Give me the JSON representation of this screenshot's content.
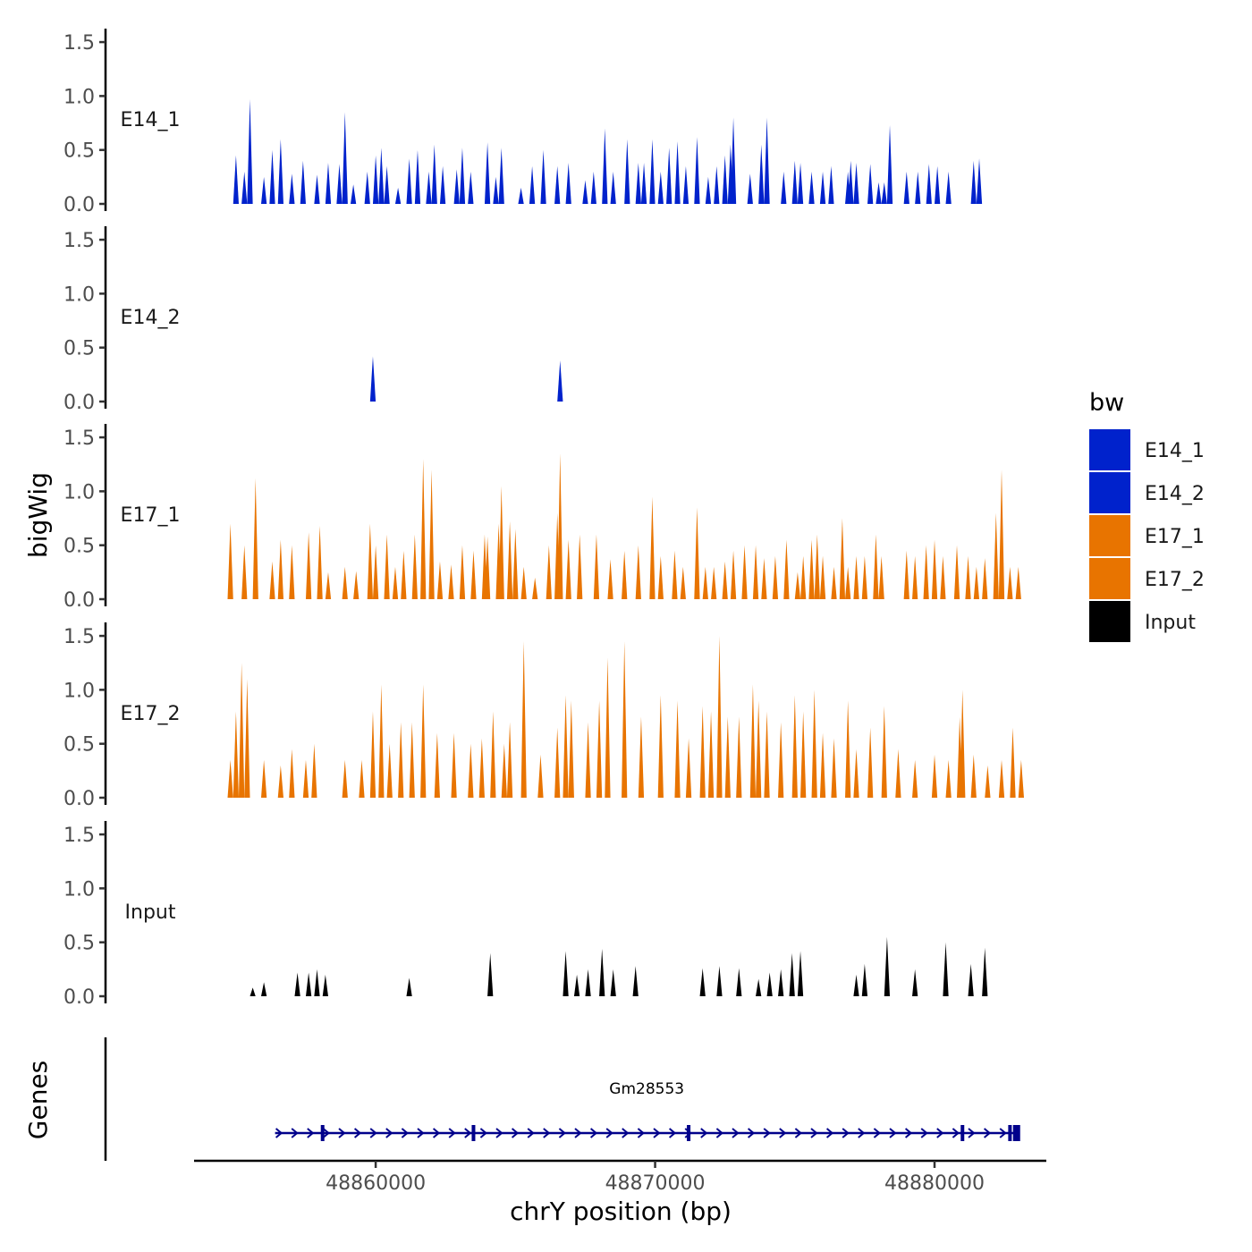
{
  "chart_data": {
    "type": "area",
    "title": "",
    "xlabel": "chrY position (bp)",
    "ylabel": "bigWig",
    "xlim": [
      48853500,
      48884000
    ],
    "ylim": [
      0,
      1.6
    ],
    "x_ticks": [
      48860000,
      48870000,
      48880000
    ],
    "x_tick_labels": [
      "48860000",
      "48870000",
      "48880000"
    ],
    "y_ticks": [
      0.0,
      0.5,
      1.0,
      1.5
    ],
    "y_tick_labels": [
      "0.0",
      "0.5",
      "1.0",
      "1.5"
    ],
    "legend": {
      "title": "bw",
      "position": "right",
      "entries": [
        {
          "label": "E14_1",
          "color": "#0022cc"
        },
        {
          "label": "E14_2",
          "color": "#0022cc"
        },
        {
          "label": "E17_1",
          "color": "#e87400"
        },
        {
          "label": "E17_2",
          "color": "#e87400"
        },
        {
          "label": "Input",
          "color": "#000000"
        }
      ]
    },
    "series": [
      {
        "name": "E14_1",
        "color": "#0022cc",
        "peaks": [
          [
            48855000,
            0.45
          ],
          [
            48855300,
            0.3
          ],
          [
            48855500,
            0.97
          ],
          [
            48856000,
            0.25
          ],
          [
            48856300,
            0.5
          ],
          [
            48856600,
            0.6
          ],
          [
            48857000,
            0.28
          ],
          [
            48857400,
            0.4
          ],
          [
            48857900,
            0.27
          ],
          [
            48858300,
            0.38
          ],
          [
            48858700,
            0.37
          ],
          [
            48858900,
            0.85
          ],
          [
            48859200,
            0.18
          ],
          [
            48859700,
            0.3
          ],
          [
            48860000,
            0.45
          ],
          [
            48860200,
            0.52
          ],
          [
            48860400,
            0.35
          ],
          [
            48860800,
            0.15
          ],
          [
            48861200,
            0.42
          ],
          [
            48861500,
            0.5
          ],
          [
            48861900,
            0.3
          ],
          [
            48862100,
            0.55
          ],
          [
            48862400,
            0.35
          ],
          [
            48862900,
            0.32
          ],
          [
            48863100,
            0.52
          ],
          [
            48863400,
            0.3
          ],
          [
            48864000,
            0.57
          ],
          [
            48864300,
            0.25
          ],
          [
            48864500,
            0.52
          ],
          [
            48865200,
            0.15
          ],
          [
            48865600,
            0.35
          ],
          [
            48866000,
            0.5
          ],
          [
            48866500,
            0.35
          ],
          [
            48866900,
            0.38
          ],
          [
            48867500,
            0.22
          ],
          [
            48867800,
            0.3
          ],
          [
            48868200,
            0.7
          ],
          [
            48868500,
            0.3
          ],
          [
            48869000,
            0.6
          ],
          [
            48869400,
            0.38
          ],
          [
            48869600,
            0.38
          ],
          [
            48869900,
            0.6
          ],
          [
            48870200,
            0.3
          ],
          [
            48870500,
            0.52
          ],
          [
            48870800,
            0.58
          ],
          [
            48871100,
            0.35
          ],
          [
            48871500,
            0.62
          ],
          [
            48871900,
            0.25
          ],
          [
            48872200,
            0.35
          ],
          [
            48872500,
            0.45
          ],
          [
            48872700,
            0.55
          ],
          [
            48872800,
            0.8
          ],
          [
            48873400,
            0.28
          ],
          [
            48873800,
            0.55
          ],
          [
            48874000,
            0.8
          ],
          [
            48874600,
            0.3
          ],
          [
            48875000,
            0.4
          ],
          [
            48875200,
            0.38
          ],
          [
            48875600,
            0.3
          ],
          [
            48876000,
            0.3
          ],
          [
            48876300,
            0.35
          ],
          [
            48876900,
            0.3
          ],
          [
            48877000,
            0.4
          ],
          [
            48877200,
            0.38
          ],
          [
            48877700,
            0.37
          ],
          [
            48878000,
            0.2
          ],
          [
            48878200,
            0.2
          ],
          [
            48878400,
            0.73
          ],
          [
            48879000,
            0.3
          ],
          [
            48879400,
            0.3
          ],
          [
            48879800,
            0.37
          ],
          [
            48880100,
            0.35
          ],
          [
            48880500,
            0.3
          ],
          [
            48881400,
            0.4
          ],
          [
            48881600,
            0.42
          ]
        ]
      },
      {
        "name": "E14_2",
        "color": "#0022cc",
        "peaks": [
          [
            48859900,
            0.42
          ],
          [
            48866600,
            0.38
          ]
        ]
      },
      {
        "name": "E17_1",
        "color": "#e87400",
        "peaks": [
          [
            48854800,
            0.7
          ],
          [
            48855300,
            0.5
          ],
          [
            48855700,
            1.12
          ],
          [
            48856300,
            0.35
          ],
          [
            48856600,
            0.55
          ],
          [
            48857000,
            0.5
          ],
          [
            48857600,
            0.62
          ],
          [
            48858000,
            0.68
          ],
          [
            48858300,
            0.25
          ],
          [
            48858900,
            0.3
          ],
          [
            48859300,
            0.26
          ],
          [
            48859800,
            0.7
          ],
          [
            48860000,
            0.5
          ],
          [
            48860400,
            0.6
          ],
          [
            48860700,
            0.3
          ],
          [
            48861000,
            0.45
          ],
          [
            48861400,
            0.6
          ],
          [
            48861700,
            1.3
          ],
          [
            48862000,
            1.2
          ],
          [
            48862300,
            0.35
          ],
          [
            48862700,
            0.32
          ],
          [
            48863100,
            0.5
          ],
          [
            48863500,
            0.45
          ],
          [
            48863900,
            0.6
          ],
          [
            48864000,
            0.58
          ],
          [
            48864400,
            0.7
          ],
          [
            48864500,
            1.05
          ],
          [
            48864800,
            0.72
          ],
          [
            48865000,
            0.65
          ],
          [
            48865300,
            0.3
          ],
          [
            48865700,
            0.2
          ],
          [
            48866200,
            0.5
          ],
          [
            48866500,
            0.8
          ],
          [
            48866600,
            1.35
          ],
          [
            48866900,
            0.55
          ],
          [
            48867300,
            0.6
          ],
          [
            48867900,
            0.6
          ],
          [
            48868400,
            0.37
          ],
          [
            48868900,
            0.45
          ],
          [
            48869400,
            0.5
          ],
          [
            48869900,
            0.95
          ],
          [
            48870200,
            0.4
          ],
          [
            48870700,
            0.45
          ],
          [
            48871000,
            0.3
          ],
          [
            48871500,
            0.85
          ],
          [
            48871800,
            0.3
          ],
          [
            48872100,
            0.3
          ],
          [
            48872500,
            0.35
          ],
          [
            48872800,
            0.45
          ],
          [
            48873200,
            0.5
          ],
          [
            48873600,
            0.5
          ],
          [
            48873900,
            0.38
          ],
          [
            48874300,
            0.4
          ],
          [
            48874700,
            0.55
          ],
          [
            48875100,
            0.25
          ],
          [
            48875300,
            0.4
          ],
          [
            48875600,
            0.55
          ],
          [
            48875800,
            0.6
          ],
          [
            48876000,
            0.4
          ],
          [
            48876400,
            0.3
          ],
          [
            48876700,
            0.75
          ],
          [
            48876900,
            0.3
          ],
          [
            48877200,
            0.4
          ],
          [
            48877500,
            0.4
          ],
          [
            48877900,
            0.6
          ],
          [
            48878100,
            0.4
          ],
          [
            48879000,
            0.45
          ],
          [
            48879300,
            0.4
          ],
          [
            48879700,
            0.5
          ],
          [
            48880000,
            0.55
          ],
          [
            48880300,
            0.4
          ],
          [
            48880800,
            0.5
          ],
          [
            48881200,
            0.4
          ],
          [
            48881500,
            0.3
          ],
          [
            48881800,
            0.38
          ],
          [
            48882200,
            0.8
          ],
          [
            48882400,
            1.2
          ],
          [
            48882700,
            0.3
          ],
          [
            48883000,
            0.3
          ]
        ]
      },
      {
        "name": "E17_2",
        "color": "#e87400",
        "peaks": [
          [
            48854800,
            0.35
          ],
          [
            48855000,
            0.8
          ],
          [
            48855200,
            1.25
          ],
          [
            48855400,
            1.1
          ],
          [
            48856000,
            0.35
          ],
          [
            48856600,
            0.3
          ],
          [
            48857000,
            0.45
          ],
          [
            48857500,
            0.35
          ],
          [
            48857800,
            0.5
          ],
          [
            48858900,
            0.35
          ],
          [
            48859500,
            0.35
          ],
          [
            48859900,
            0.8
          ],
          [
            48860200,
            1.05
          ],
          [
            48860500,
            0.5
          ],
          [
            48860900,
            0.7
          ],
          [
            48861300,
            0.7
          ],
          [
            48861700,
            1.05
          ],
          [
            48862200,
            0.6
          ],
          [
            48862800,
            0.6
          ],
          [
            48863400,
            0.5
          ],
          [
            48863800,
            0.55
          ],
          [
            48864200,
            0.8
          ],
          [
            48864600,
            0.5
          ],
          [
            48864800,
            0.7
          ],
          [
            48865300,
            1.45
          ],
          [
            48865900,
            0.4
          ],
          [
            48866500,
            0.65
          ],
          [
            48866800,
            0.95
          ],
          [
            48867000,
            0.9
          ],
          [
            48867600,
            0.7
          ],
          [
            48868000,
            0.9
          ],
          [
            48868300,
            1.3
          ],
          [
            48868900,
            1.45
          ],
          [
            48869500,
            0.75
          ],
          [
            48870200,
            0.95
          ],
          [
            48870800,
            0.9
          ],
          [
            48871200,
            0.55
          ],
          [
            48871700,
            0.85
          ],
          [
            48872000,
            0.8
          ],
          [
            48872300,
            1.5
          ],
          [
            48872600,
            0.75
          ],
          [
            48873000,
            0.75
          ],
          [
            48873500,
            1.05
          ],
          [
            48873700,
            0.9
          ],
          [
            48874000,
            0.8
          ],
          [
            48874500,
            0.7
          ],
          [
            48875000,
            0.95
          ],
          [
            48875300,
            0.8
          ],
          [
            48875700,
            1.0
          ],
          [
            48876000,
            0.6
          ],
          [
            48876400,
            0.55
          ],
          [
            48876900,
            0.9
          ],
          [
            48877200,
            0.45
          ],
          [
            48877700,
            0.65
          ],
          [
            48878200,
            0.85
          ],
          [
            48878700,
            0.45
          ],
          [
            48879300,
            0.35
          ],
          [
            48880000,
            0.4
          ],
          [
            48880500,
            0.35
          ],
          [
            48880900,
            0.75
          ],
          [
            48881000,
            1.0
          ],
          [
            48881400,
            0.4
          ],
          [
            48881900,
            0.3
          ],
          [
            48882400,
            0.35
          ],
          [
            48882800,
            0.65
          ],
          [
            48883100,
            0.35
          ]
        ]
      },
      {
        "name": "Input",
        "color": "#000000",
        "peaks": [
          [
            48855600,
            0.08
          ],
          [
            48856000,
            0.13
          ],
          [
            48857200,
            0.22
          ],
          [
            48857600,
            0.22
          ],
          [
            48857900,
            0.25
          ],
          [
            48858200,
            0.2
          ],
          [
            48861200,
            0.17
          ],
          [
            48864100,
            0.4
          ],
          [
            48866800,
            0.42
          ],
          [
            48867200,
            0.2
          ],
          [
            48867600,
            0.25
          ],
          [
            48868100,
            0.44
          ],
          [
            48868500,
            0.25
          ],
          [
            48869300,
            0.28
          ],
          [
            48871700,
            0.26
          ],
          [
            48872300,
            0.28
          ],
          [
            48873000,
            0.26
          ],
          [
            48873700,
            0.16
          ],
          [
            48874100,
            0.22
          ],
          [
            48874500,
            0.25
          ],
          [
            48874900,
            0.4
          ],
          [
            48875200,
            0.42
          ],
          [
            48877200,
            0.2
          ],
          [
            48877500,
            0.3
          ],
          [
            48878300,
            0.55
          ],
          [
            48879300,
            0.25
          ],
          [
            48880400,
            0.5
          ],
          [
            48881300,
            0.3
          ],
          [
            48881800,
            0.45
          ]
        ]
      }
    ],
    "genes": [
      {
        "name": "Gm28553",
        "start": 48856400,
        "end": 48883000,
        "strand": "+",
        "exons": [
          48858100,
          48863500,
          48871200,
          48881000,
          48882700
        ]
      }
    ],
    "gene_track_label": "Genes"
  }
}
